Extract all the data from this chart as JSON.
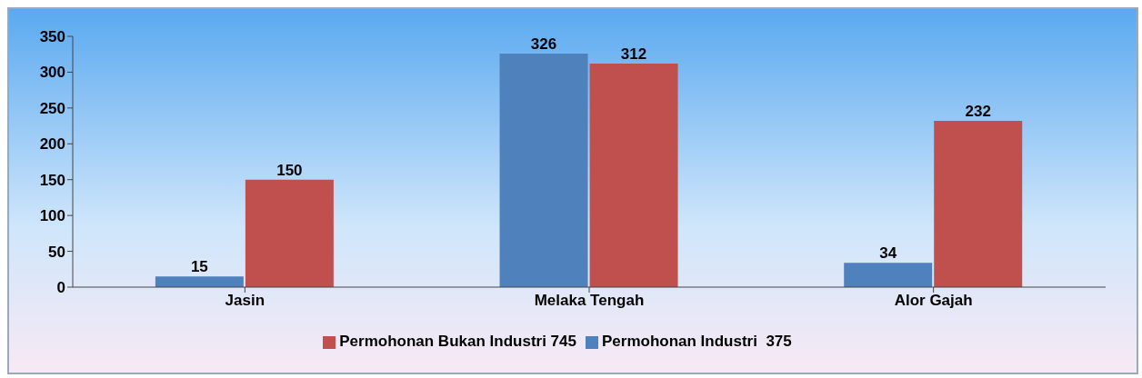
{
  "chart_data": {
    "type": "bar",
    "categories": [
      "Jasin",
      "Melaka Tengah",
      "Alor Gajah"
    ],
    "series": [
      {
        "name": "Permohonan Industri  375",
        "color": "#4f81bd",
        "values": [
          15,
          326,
          34
        ]
      },
      {
        "name": "Permohonan Bukan Industri 745",
        "color": "#c0504d",
        "values": [
          150,
          312,
          232
        ]
      }
    ],
    "ylim": [
      0,
      350
    ],
    "yticks": [
      0,
      50,
      100,
      150,
      200,
      250,
      300,
      350
    ],
    "grid": false,
    "legend": "bottom",
    "data_labels": true
  }
}
